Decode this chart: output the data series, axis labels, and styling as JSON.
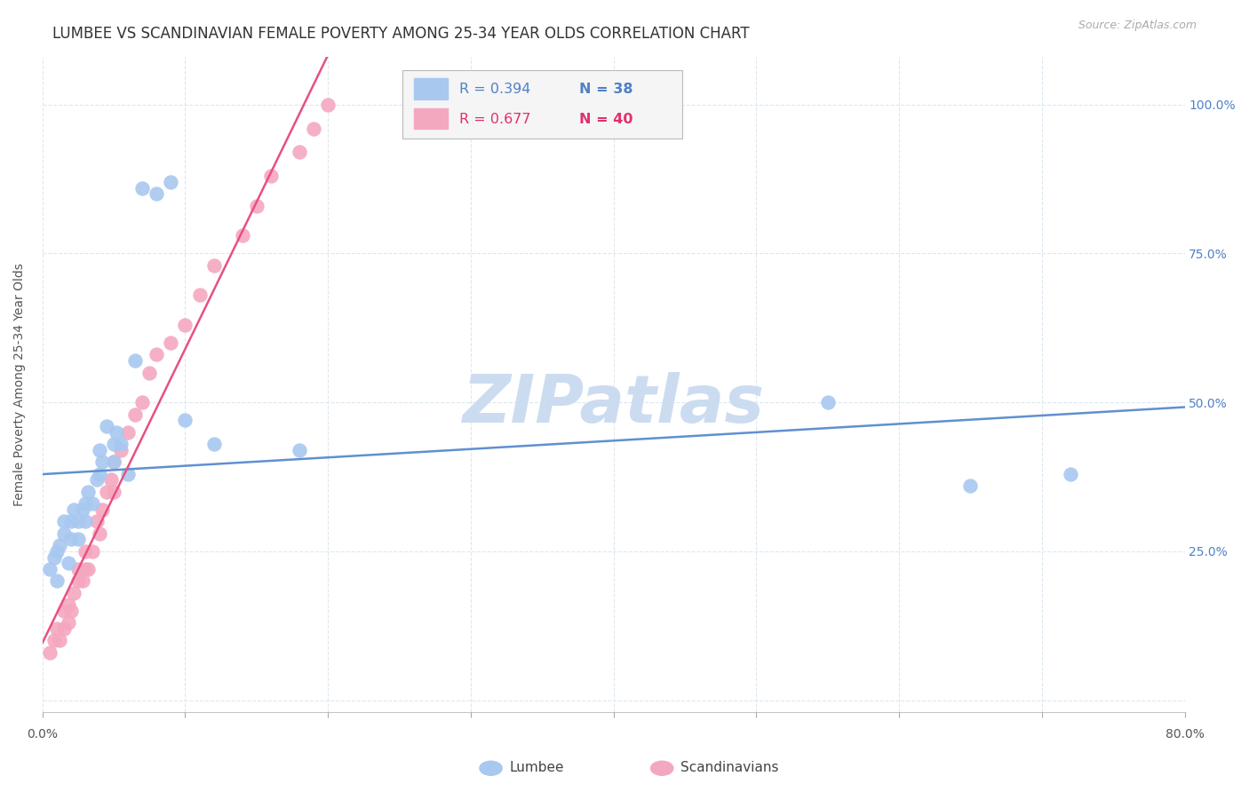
{
  "title": "LUMBEE VS SCANDINAVIAN FEMALE POVERTY AMONG 25-34 YEAR OLDS CORRELATION CHART",
  "source": "Source: ZipAtlas.com",
  "ylabel": "Female Poverty Among 25-34 Year Olds",
  "xlabel_lumbee": "Lumbee",
  "xlabel_scandinavians": "Scandinavians",
  "xlim": [
    0.0,
    0.8
  ],
  "ylim": [
    -0.02,
    1.08
  ],
  "lumbee_R": 0.394,
  "lumbee_N": 38,
  "scandinavian_R": 0.677,
  "scandinavian_N": 40,
  "lumbee_color": "#a8c8f0",
  "scandinavian_color": "#f4a8c0",
  "lumbee_line_color": "#6090d0",
  "scandinavian_line_color": "#e85080",
  "legend_text_color_blue": "#5080c8",
  "legend_text_color_pink": "#e03070",
  "watermark": "ZIPatlas",
  "watermark_color": "#ccdcf0",
  "lumbee_x": [
    0.005,
    0.008,
    0.01,
    0.01,
    0.012,
    0.015,
    0.015,
    0.018,
    0.02,
    0.02,
    0.022,
    0.025,
    0.025,
    0.028,
    0.03,
    0.03,
    0.032,
    0.035,
    0.038,
    0.04,
    0.04,
    0.042,
    0.045,
    0.05,
    0.05,
    0.052,
    0.055,
    0.06,
    0.065,
    0.07,
    0.08,
    0.09,
    0.1,
    0.12,
    0.18,
    0.55,
    0.65,
    0.72
  ],
  "lumbee_y": [
    0.22,
    0.24,
    0.2,
    0.25,
    0.26,
    0.28,
    0.3,
    0.23,
    0.27,
    0.3,
    0.32,
    0.27,
    0.3,
    0.32,
    0.3,
    0.33,
    0.35,
    0.33,
    0.37,
    0.38,
    0.42,
    0.4,
    0.46,
    0.4,
    0.43,
    0.45,
    0.43,
    0.38,
    0.57,
    0.86,
    0.85,
    0.87,
    0.47,
    0.43,
    0.42,
    0.5,
    0.36,
    0.38
  ],
  "scandinavian_x": [
    0.005,
    0.008,
    0.01,
    0.012,
    0.015,
    0.015,
    0.018,
    0.018,
    0.02,
    0.022,
    0.025,
    0.025,
    0.028,
    0.03,
    0.03,
    0.032,
    0.035,
    0.038,
    0.04,
    0.042,
    0.045,
    0.048,
    0.05,
    0.05,
    0.055,
    0.06,
    0.065,
    0.07,
    0.075,
    0.08,
    0.09,
    0.1,
    0.11,
    0.12,
    0.14,
    0.15,
    0.16,
    0.18,
    0.19,
    0.2
  ],
  "scandinavian_y": [
    0.08,
    0.1,
    0.12,
    0.1,
    0.12,
    0.15,
    0.13,
    0.16,
    0.15,
    0.18,
    0.2,
    0.22,
    0.2,
    0.22,
    0.25,
    0.22,
    0.25,
    0.3,
    0.28,
    0.32,
    0.35,
    0.37,
    0.35,
    0.4,
    0.42,
    0.45,
    0.48,
    0.5,
    0.55,
    0.58,
    0.6,
    0.63,
    0.68,
    0.73,
    0.78,
    0.83,
    0.88,
    0.92,
    0.96,
    1.0
  ],
  "background_color": "#ffffff",
  "grid_color": "#dde8f0",
  "title_fontsize": 12,
  "axis_label_fontsize": 10,
  "tick_fontsize": 10,
  "y_ticks": [
    0.0,
    0.25,
    0.5,
    0.75,
    1.0
  ],
  "y_tick_labels_right": [
    "",
    "25.0%",
    "50.0%",
    "75.0%",
    "100.0%"
  ]
}
